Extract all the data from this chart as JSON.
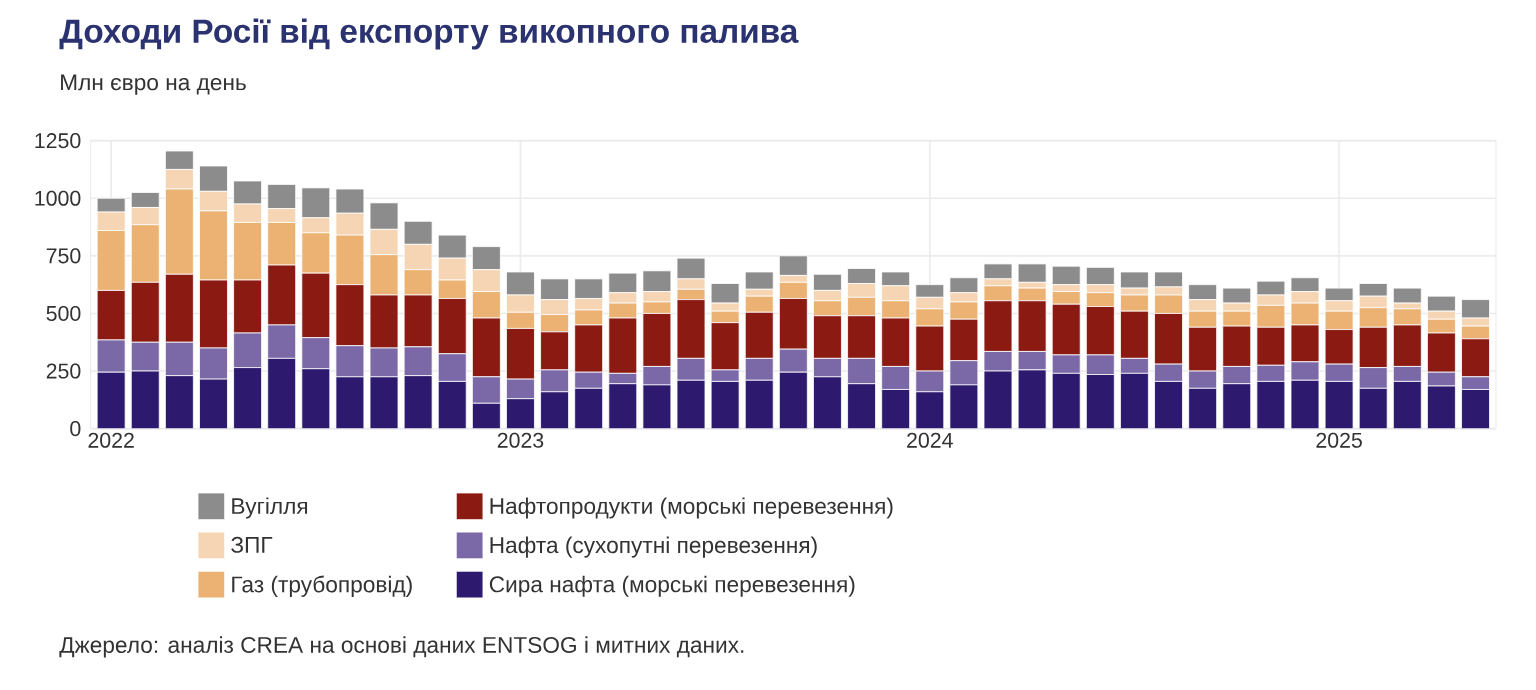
{
  "chart_data": {
    "type": "bar",
    "stacked": true,
    "title": "Доходи Росії від експорту викопного палива",
    "subtitle": "Млн євро на день",
    "categories": [
      "2022",
      null,
      null,
      null,
      null,
      null,
      null,
      null,
      null,
      null,
      null,
      null,
      "2023",
      null,
      null,
      null,
      null,
      null,
      null,
      null,
      null,
      null,
      null,
      null,
      "2024",
      null,
      null,
      null,
      null,
      null,
      null,
      null,
      null,
      null,
      null,
      null,
      "2025",
      null,
      null,
      null,
      null
    ],
    "ylim": [
      0,
      1250
    ],
    "yticks": [
      0,
      250,
      500,
      750,
      1000,
      1250
    ],
    "grid": true,
    "legend": "bottom",
    "series": [
      {
        "name": "Сира нафта (морські перевезення)",
        "color": "#2d1a6e",
        "values": [
          245,
          250,
          230,
          215,
          265,
          305,
          260,
          225,
          225,
          230,
          205,
          110,
          130,
          160,
          175,
          195,
          190,
          210,
          205,
          210,
          245,
          225,
          195,
          170,
          160,
          190,
          250,
          255,
          240,
          235,
          240,
          205,
          175,
          195,
          205,
          210,
          205,
          175,
          205,
          185,
          170
        ]
      },
      {
        "name": "Нафта (сухопутні перевезення)",
        "color": "#7b68a6",
        "values": [
          140,
          125,
          145,
          135,
          150,
          145,
          135,
          135,
          125,
          125,
          120,
          115,
          85,
          95,
          70,
          45,
          80,
          95,
          50,
          95,
          100,
          80,
          110,
          100,
          90,
          105,
          85,
          80,
          80,
          85,
          65,
          75,
          75,
          75,
          70,
          80,
          75,
          90,
          65,
          60,
          55
        ]
      },
      {
        "name": "Нафтопродукти (морські перевезення)",
        "color": "#8b1a12",
        "values": [
          215,
          260,
          295,
          295,
          230,
          260,
          280,
          265,
          230,
          225,
          240,
          255,
          220,
          165,
          205,
          240,
          230,
          255,
          205,
          200,
          220,
          185,
          185,
          210,
          195,
          180,
          220,
          220,
          220,
          210,
          205,
          220,
          190,
          175,
          165,
          160,
          150,
          175,
          180,
          170,
          165
        ]
      },
      {
        "name": "Газ (трубопровід)",
        "color": "#ebb273",
        "values": [
          260,
          250,
          370,
          300,
          250,
          185,
          175,
          215,
          175,
          110,
          80,
          115,
          70,
          75,
          65,
          65,
          50,
          45,
          50,
          70,
          70,
          65,
          80,
          75,
          75,
          75,
          65,
          55,
          55,
          60,
          70,
          80,
          70,
          65,
          95,
          95,
          80,
          85,
          70,
          60,
          55
        ]
      },
      {
        "name": "ЗПГ",
        "color": "#f5d5b3",
        "values": [
          80,
          75,
          85,
          85,
          80,
          60,
          65,
          95,
          110,
          110,
          95,
          95,
          75,
          65,
          50,
          45,
          45,
          45,
          35,
          30,
          30,
          45,
          60,
          65,
          50,
          40,
          30,
          25,
          30,
          35,
          30,
          35,
          50,
          35,
          45,
          50,
          45,
          50,
          25,
          35,
          35
        ]
      },
      {
        "name": "Вугілля",
        "color": "#8c8c8c",
        "values": [
          60,
          65,
          80,
          110,
          100,
          105,
          130,
          105,
          115,
          100,
          100,
          100,
          100,
          90,
          85,
          85,
          90,
          90,
          85,
          75,
          85,
          70,
          65,
          60,
          55,
          65,
          65,
          80,
          80,
          75,
          70,
          65,
          65,
          65,
          60,
          60,
          55,
          55,
          65,
          65,
          80
        ]
      }
    ],
    "annotations": [
      "Джерело: аналіз CREA на основі даних ENTSOG і митних даних."
    ]
  }
}
